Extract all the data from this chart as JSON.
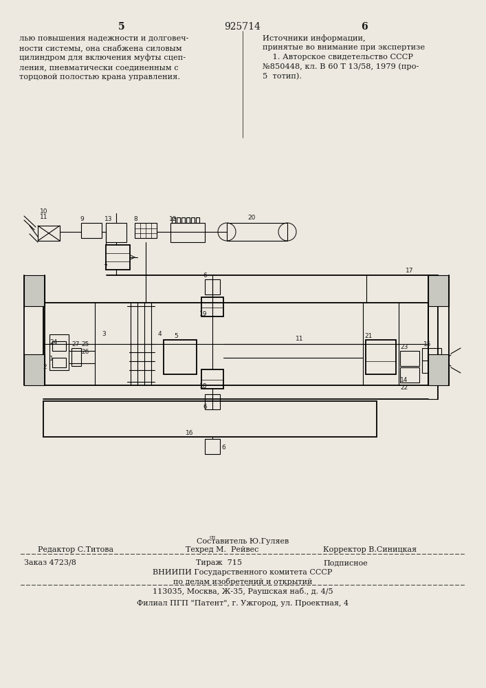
{
  "bg_color": "#ede9e0",
  "text_color": "#1a1a1a",
  "page_num_left": "5",
  "page_num_center": "925714",
  "page_num_right": "6",
  "col_left_text": "лью повышения надежности и долговеч-\nности системы, она снабжена силовым\nцилиндром для включения муфты сцеп-\nления, пневматически соединенным с\nторцовой полостью крана управления.",
  "col_right_header": "Источники информации,",
  "col_right_text": "принятые во внимание при экспертизе\n    1. Авторское свидетельство СССР\n№850448, кл. В 60 Т 13/58, 1979 (про-\n5  тотип).",
  "bottom_sestavitel_sup": "сп",
  "bottom_sestavitel": "Составитель Ю.Гуляев",
  "bottom_editor": "Редактор С.Титова",
  "bottom_tekhred": "Техред М.  Рейвес",
  "bottom_korrektor": "Корректор В.Синицкая",
  "bottom_zakaz": "Заказ 4723/8",
  "bottom_tirazh": "Тираж  715",
  "bottom_podpisnoe": "Подписное",
  "bottom_vnipi": "ВНИИПИ Государственного комитета СССР",
  "bottom_po_delam": "по делам изобретений и открытий",
  "bottom_address": "113035, Москва, Ж-35, Раушская наб., д. 4/5",
  "bottom_filial": "Филиал ПГП \"Патент\", г. Ужгород, ул. Проектная, 4"
}
